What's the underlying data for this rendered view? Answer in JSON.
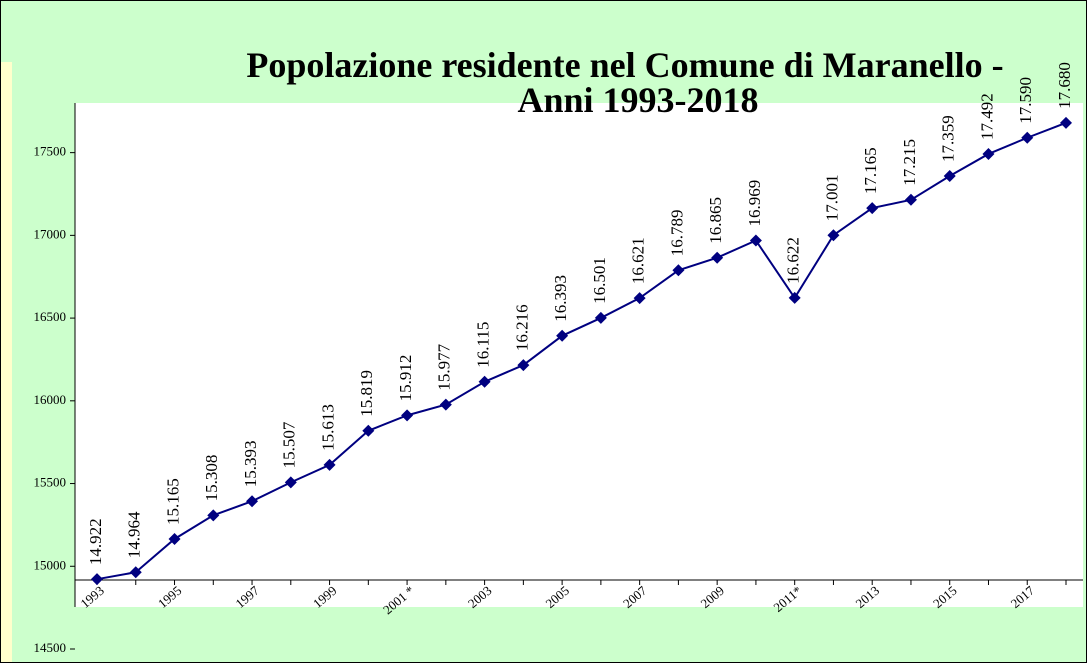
{
  "chart_data": {
    "type": "line",
    "title": "Popolazione residente nel Comune di Maranello -",
    "subtitle": "Anni 1993-2018",
    "categories": [
      "1993",
      null,
      "1995",
      null,
      "1997",
      null,
      "1999",
      null,
      "2001 *",
      null,
      "2003",
      null,
      "2005",
      null,
      "2007",
      null,
      "2009",
      null,
      "2011*",
      null,
      "2013",
      null,
      "2015",
      null,
      "2017",
      null
    ],
    "series": [
      {
        "name": "Popolazione",
        "color": "#000080",
        "values": [
          14922,
          14964,
          15165,
          15308,
          15393,
          15507,
          15613,
          15819,
          15912,
          15977,
          16115,
          16216,
          16393,
          16501,
          16621,
          16789,
          16865,
          16969,
          16622,
          17001,
          17165,
          17215,
          17359,
          17492,
          17590,
          17680
        ],
        "value_labels": [
          "14.922",
          "14.964",
          "15.165",
          "15.308",
          "15.393",
          "15.507",
          "15.613",
          "15.819",
          "15.912",
          "15.977",
          "16.115",
          "16.216",
          "16.393",
          "16.501",
          "16.621",
          "16.789",
          "16.865",
          "16.969",
          "16.622",
          "17.001",
          "17.165",
          "17.215",
          "17.359",
          "17.492",
          "17.590",
          "17.680"
        ]
      }
    ],
    "ylim": [
      14500,
      17800
    ],
    "yticks": [
      14500,
      15000,
      15500,
      16000,
      16500,
      17000,
      17500
    ],
    "grid": false
  }
}
